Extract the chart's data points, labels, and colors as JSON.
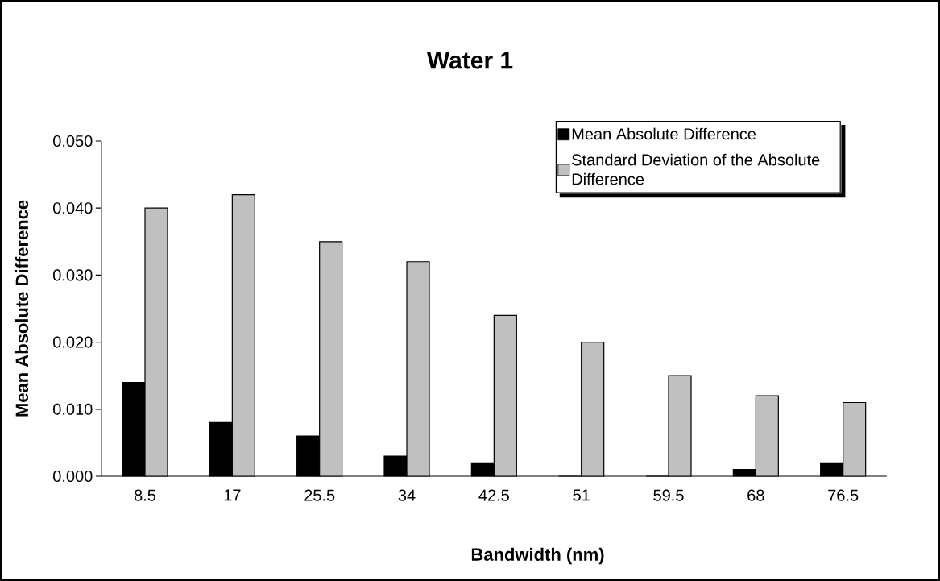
{
  "chart_data": {
    "type": "bar",
    "title": "Water 1",
    "xlabel": "Bandwidth (nm)",
    "ylabel": "Mean Absolute Difference",
    "categories": [
      "8.5",
      "17",
      "25.5",
      "34",
      "42.5",
      "51",
      "59.5",
      "68",
      "76.5"
    ],
    "series": [
      {
        "name": "Mean Absolute Difference",
        "color": "#000000",
        "values": [
          0.014,
          0.008,
          0.006,
          0.003,
          0.002,
          0,
          0,
          0.001,
          0.002
        ]
      },
      {
        "name": "Standard Deviation of the Absolute Difference",
        "color": "#c0c0c0",
        "values": [
          0.04,
          0.042,
          0.035,
          0.032,
          0.024,
          0.02,
          0.015,
          0.012,
          0.011
        ]
      }
    ],
    "ylim": [
      0,
      0.05
    ],
    "yticks": [
      {
        "value": 0,
        "label": "0.000"
      },
      {
        "value": 0.01,
        "label": "0.010"
      },
      {
        "value": 0.02,
        "label": "0.020"
      },
      {
        "value": 0.03,
        "label": "0.030"
      },
      {
        "value": 0.04,
        "label": "0.040"
      },
      {
        "value": 0.05,
        "label": "0.050"
      }
    ],
    "grid": false,
    "legend": "top right"
  }
}
